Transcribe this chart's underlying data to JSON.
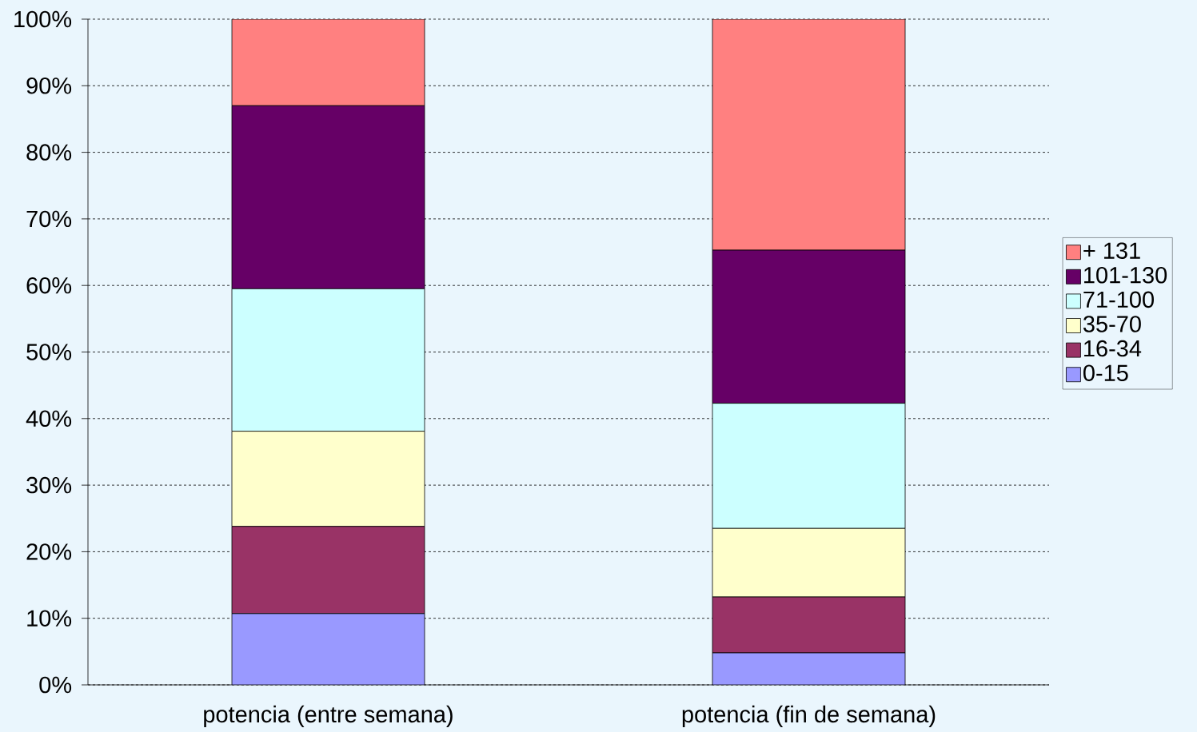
{
  "chart_data": {
    "type": "bar",
    "stacked": true,
    "categories": [
      "potencia (entre semana)",
      "potencia (fin de semana)"
    ],
    "series": [
      {
        "name": "0-15",
        "color": "#9999ff",
        "values": [
          10.7,
          4.8
        ]
      },
      {
        "name": "16-34",
        "color": "#993366",
        "values": [
          13.1,
          8.4
        ]
      },
      {
        "name": "35-70",
        "color": "#ffffcc",
        "values": [
          14.3,
          10.3
        ]
      },
      {
        "name": "71-100",
        "color": "#ccffff",
        "values": [
          21.4,
          18.8
        ]
      },
      {
        "name": "101-130",
        "color": "#660066",
        "values": [
          27.5,
          23.0
        ]
      },
      {
        "name": "+ 131",
        "color": "#ff8080",
        "values": [
          13.0,
          34.7
        ]
      }
    ],
    "ylim": [
      0,
      100
    ],
    "yticks": [
      {
        "value": 0,
        "label": "0%"
      },
      {
        "value": 10,
        "label": "10%"
      },
      {
        "value": 20,
        "label": "20%"
      },
      {
        "value": 30,
        "label": "30%"
      },
      {
        "value": 40,
        "label": "40%"
      },
      {
        "value": 50,
        "label": "50%"
      },
      {
        "value": 60,
        "label": "60%"
      },
      {
        "value": 70,
        "label": "70%"
      },
      {
        "value": 80,
        "label": "80%"
      },
      {
        "value": 90,
        "label": "90%"
      },
      {
        "value": 100,
        "label": "100%"
      }
    ],
    "grid": "y",
    "legend": "right"
  }
}
